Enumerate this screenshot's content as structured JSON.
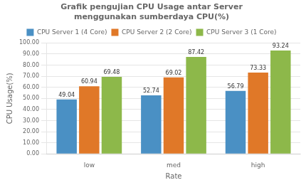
{
  "chart_data": {
    "type": "bar",
    "title": "Grafik pengujian CPU Usage antar Server\nmenggunakan sumberdaya CPU(%)",
    "xlabel": "Rate",
    "ylabel": "CPU Usage(%)",
    "categories": [
      "low",
      "med",
      "high"
    ],
    "series": [
      {
        "name": "CPU Server 1 (4 Core)",
        "color": "#4A90C4",
        "values": [
          49.04,
          52.74,
          56.79
        ]
      },
      {
        "name": "CPU Server 2 (2 Core)",
        "color": "#E07828",
        "values": [
          60.94,
          69.02,
          73.33
        ]
      },
      {
        "name": "CPU Server 3 (1 Core)",
        "color": "#8DB84A",
        "values": [
          69.48,
          87.42,
          93.24
        ]
      }
    ],
    "ylim": [
      0,
      100
    ],
    "yticks": [
      {
        "value": 0,
        "label": "0.00"
      },
      {
        "value": 10,
        "label": "10.00"
      },
      {
        "value": 20,
        "label": "20.00"
      },
      {
        "value": 30,
        "label": "30.00"
      },
      {
        "value": 40,
        "label": "40.00"
      },
      {
        "value": 50,
        "label": "50.00"
      },
      {
        "value": 60,
        "label": "60.00"
      },
      {
        "value": 70,
        "label": "70.00"
      },
      {
        "value": 80,
        "label": "80.00"
      },
      {
        "value": 90,
        "label": "90.00"
      },
      {
        "value": 100,
        "label": "100.00"
      }
    ],
    "grid": true,
    "legend": "top",
    "data_labels": true
  }
}
